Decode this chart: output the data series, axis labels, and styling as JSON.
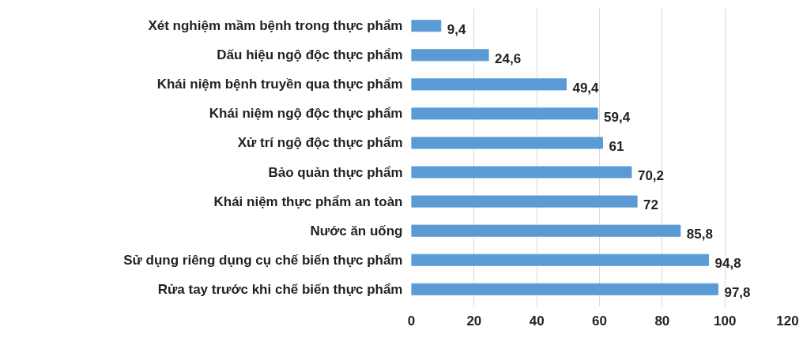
{
  "chart_data": {
    "type": "bar",
    "orientation": "horizontal",
    "categories": [
      "Xét nghiệm mầm bệnh trong thực phẩm",
      "Dấu hiệu ngộ độc thực phẩm",
      "Khái niệm bệnh truyền qua thực phẩm",
      "Khái niệm ngộ độc thực phẩm",
      "Xử trí ngộ độc thực phẩm",
      "Bảo quản thực phẩm",
      "Khái niệm thực phẩm an toàn",
      "Nước ăn uống",
      "Sử dụng riêng dụng cụ chế biến thực phẩm",
      "Rửa tay trước khi chế biến thực phẩm"
    ],
    "values": [
      9.4,
      24.6,
      49.4,
      59.4,
      61,
      70.2,
      72,
      85.8,
      94.8,
      97.8
    ],
    "value_labels": [
      "9,4",
      "24,6",
      "49,4",
      "59,4",
      "61",
      "70,2",
      "72",
      "85,8",
      "94,8",
      "97,8"
    ],
    "color": "#5b9bd5",
    "xlim": [
      0,
      120
    ],
    "xticks": [
      0,
      20,
      40,
      60,
      80,
      100,
      120
    ],
    "grid": "x"
  }
}
